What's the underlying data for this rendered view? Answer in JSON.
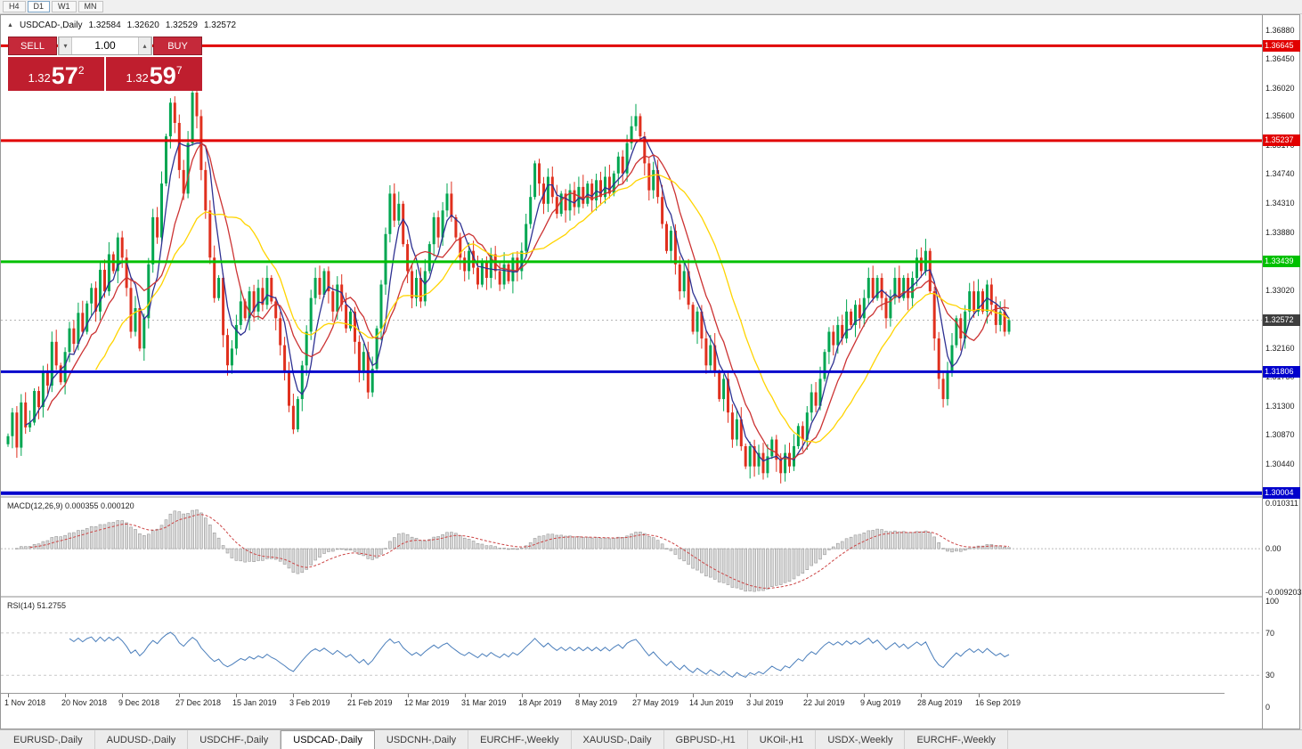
{
  "toolbar": {
    "timeframes": [
      {
        "label": "H4",
        "active": false
      },
      {
        "label": "D1",
        "active": true
      },
      {
        "label": "W1",
        "active": false
      },
      {
        "label": "MN",
        "active": false
      }
    ]
  },
  "chart": {
    "title": {
      "symbol": "USDCAD-,Daily",
      "open": "1.32584",
      "high": "1.32620",
      "low": "1.32529",
      "close": "1.32572"
    },
    "trade_panel": {
      "sell_label": "SELL",
      "buy_label": "BUY",
      "volume": "1.00",
      "bid": {
        "prefix": "1.32",
        "big": "57",
        "sup": "2"
      },
      "ask": {
        "prefix": "1.32",
        "big": "59",
        "sup": "7"
      }
    }
  },
  "chart_data": {
    "type": "candlestick",
    "symbol": "USDCAD",
    "timeframe": "Daily",
    "title": "USDCAD-,Daily 1.32584 1.32620 1.32529 1.32572",
    "price_axis": {
      "min": 1.2996,
      "max": 1.371,
      "ticks": [
        {
          "v": 1.3688,
          "label": "1.36880"
        },
        {
          "v": 1.3645,
          "label": "1.36450"
        },
        {
          "v": 1.3602,
          "label": "1.36020"
        },
        {
          "v": 1.356,
          "label": "1.35600"
        },
        {
          "v": 1.3517,
          "label": "1.35170"
        },
        {
          "v": 1.3474,
          "label": "1.34740"
        },
        {
          "v": 1.3431,
          "label": "1.34310"
        },
        {
          "v": 1.3388,
          "label": "1.33880"
        },
        {
          "v": 1.3345,
          "label": "1.33450"
        },
        {
          "v": 1.3302,
          "label": "1.33020"
        },
        {
          "v": 1.3259,
          "label": "1.32590"
        },
        {
          "v": 1.3216,
          "label": "1.32160"
        },
        {
          "v": 1.3173,
          "label": "1.31730"
        },
        {
          "v": 1.313,
          "label": "1.31300"
        },
        {
          "v": 1.3087,
          "label": "1.30870"
        },
        {
          "v": 1.3044,
          "label": "1.30440"
        },
        {
          "v": 1.3001,
          "label": "1.30010"
        }
      ]
    },
    "levels": [
      {
        "price": 1.36645,
        "label": "1.36645",
        "color": "#e10000",
        "width": 3
      },
      {
        "price": 1.35237,
        "label": "1.35237",
        "color": "#e10000",
        "width": 3
      },
      {
        "price": 1.33439,
        "label": "1.33439",
        "color": "#00c000",
        "width": 3
      },
      {
        "price": 1.31806,
        "label": "1.31806",
        "color": "#0000cc",
        "width": 3
      },
      {
        "price": 1.30004,
        "label": "1.30004",
        "color": "#0000cc",
        "width": 4
      }
    ],
    "current_price": {
      "price": 1.32572,
      "label": "1.32572",
      "color": "#3e3e3e"
    },
    "candle_colors": {
      "up": "#00a651",
      "down": "#e0301e"
    },
    "moving_averages": [
      {
        "period": 5,
        "color": "#2e3192"
      },
      {
        "period": 10,
        "color": "#cc3333"
      },
      {
        "period": 21,
        "color": "#ffd400"
      }
    ],
    "x_label_step": 13,
    "x_labels": [
      "1 Nov 2018",
      "20 Nov 2018",
      "9 Dec 2018",
      "27 Dec 2018",
      "15 Jan 2019",
      "3 Feb 2019",
      "21 Feb 2019",
      "12 Mar 2019",
      "31 Mar 2019",
      "18 Apr 2019",
      "8 May 2019",
      "27 May 2019",
      "14 Jun 2019",
      "3 Jul 2019",
      "22 Jul 2019",
      "9 Aug 2019",
      "28 Aug 2019",
      "16 Sep 2019"
    ],
    "closes": [
      1.3085,
      1.312,
      1.3068,
      1.3135,
      1.3098,
      1.3105,
      1.3152,
      1.3128,
      1.318,
      1.316,
      1.3225,
      1.319,
      1.3165,
      1.321,
      1.3245,
      1.3222,
      1.3268,
      1.324,
      1.3282,
      1.3305,
      1.327,
      1.3332,
      1.33,
      1.3355,
      1.333,
      1.338,
      1.335,
      1.3305,
      1.324,
      1.3275,
      1.3215,
      1.326,
      1.334,
      1.341,
      1.338,
      1.346,
      1.353,
      1.358,
      1.355,
      1.348,
      1.3445,
      1.352,
      1.3595,
      1.356,
      1.348,
      1.342,
      1.335,
      1.329,
      1.332,
      1.3235,
      1.319,
      1.3215,
      1.325,
      1.3285,
      1.326,
      1.33,
      1.327,
      1.3305,
      1.328,
      1.332,
      1.3285,
      1.326,
      1.322,
      1.318,
      1.313,
      1.3095,
      1.314,
      1.319,
      1.324,
      1.329,
      1.332,
      1.3295,
      1.333,
      1.33,
      1.327,
      1.331,
      1.328,
      1.3245,
      1.327,
      1.3225,
      1.318,
      1.321,
      1.315,
      1.3185,
      1.3245,
      1.331,
      1.3385,
      1.3445,
      1.3405,
      1.343,
      1.337,
      1.333,
      1.329,
      1.332,
      1.3285,
      1.333,
      1.337,
      1.341,
      1.338,
      1.342,
      1.3445,
      1.341,
      1.338,
      1.335,
      1.333,
      1.336,
      1.3335,
      1.331,
      1.3345,
      1.332,
      1.3355,
      1.333,
      1.331,
      1.334,
      1.3315,
      1.335,
      1.333,
      1.336,
      1.34,
      1.344,
      1.349,
      1.346,
      1.343,
      1.347,
      1.344,
      1.3415,
      1.3445,
      1.342,
      1.345,
      1.3425,
      1.3455,
      1.343,
      1.346,
      1.3435,
      1.3465,
      1.344,
      1.347,
      1.3445,
      1.3475,
      1.35,
      1.3475,
      1.352,
      1.3545,
      1.356,
      1.353,
      1.349,
      1.345,
      1.348,
      1.344,
      1.34,
      1.336,
      1.339,
      1.334,
      1.33,
      1.333,
      1.328,
      1.324,
      1.327,
      1.323,
      1.319,
      1.322,
      1.318,
      1.314,
      1.317,
      1.312,
      1.308,
      1.311,
      1.307,
      1.304,
      1.307,
      1.304,
      1.306,
      1.303,
      1.3055,
      1.308,
      1.305,
      1.303,
      1.306,
      1.304,
      1.307,
      1.31,
      1.308,
      1.312,
      1.315,
      1.313,
      1.317,
      1.321,
      1.324,
      1.322,
      1.325,
      1.323,
      1.327,
      1.325,
      1.328,
      1.326,
      1.329,
      1.332,
      1.329,
      1.332,
      1.329,
      1.326,
      1.329,
      1.332,
      1.329,
      1.332,
      1.329,
      1.332,
      1.335,
      1.333,
      1.336,
      1.33,
      1.323,
      1.317,
      1.314,
      1.318,
      1.322,
      1.326,
      1.323,
      1.327,
      1.33,
      1.327,
      1.33,
      1.327,
      1.331,
      1.328,
      1.325,
      1.327,
      1.324,
      1.32572
    ],
    "macd": {
      "title": "MACD(12,26,9) 0.000355 0.000120",
      "fast": 12,
      "slow": 26,
      "signal": 9,
      "current_values": [
        0.000355,
        0.00012
      ],
      "axis": [
        {
          "v": 0.010311,
          "label": "0.010311"
        },
        {
          "v": 0,
          "label": "0.00"
        },
        {
          "v": -0.009203,
          "label": "-0.009203"
        }
      ],
      "hist_fill": "#d9d9d9",
      "hist_stroke": "#999999",
      "signal_color": "#cc4444"
    },
    "rsi": {
      "title": "RSI(14) 51.2755",
      "period": 14,
      "current": 51.2755,
      "axis": [
        {
          "v": 100,
          "label": "100"
        },
        {
          "v": 70,
          "label": "70"
        },
        {
          "v": 30,
          "label": "30"
        },
        {
          "v": 0,
          "label": "0"
        }
      ],
      "level_lines": [
        70,
        30
      ],
      "line_color": "#4a7ebb"
    }
  },
  "tabs": [
    {
      "label": "EURUSD-,Daily",
      "active": false
    },
    {
      "label": "AUDUSD-,Daily",
      "active": false
    },
    {
      "label": "USDCHF-,Daily",
      "active": false
    },
    {
      "label": "USDCAD-,Daily",
      "active": true
    },
    {
      "label": "USDCNH-,Daily",
      "active": false
    },
    {
      "label": "EURCHF-,Weekly",
      "active": false
    },
    {
      "label": "XAUUSD-,Daily",
      "active": false
    },
    {
      "label": "GBPUSD-,H1",
      "active": false
    },
    {
      "label": "UKOil-,H1",
      "active": false
    },
    {
      "label": "USDX-,Weekly",
      "active": false
    },
    {
      "label": "EURCHF-,Weekly",
      "active": false
    }
  ]
}
